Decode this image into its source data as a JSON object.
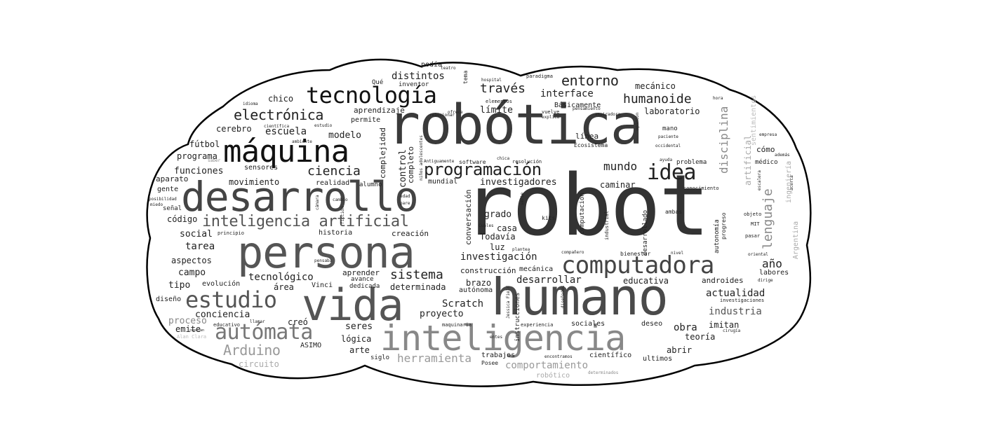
{
  "palette": {
    "background": "#ffffff",
    "cloud_fill": "#ffffff",
    "cloud_stroke": "#000000"
  },
  "word_cloud": {
    "words": [
      {
        "text": "robot",
        "color": "#333333"
      },
      {
        "text": "robótica",
        "color": "#3a3a3a"
      },
      {
        "text": "humano",
        "color": "#4a4a4a"
      },
      {
        "text": "persona",
        "color": "#555555"
      },
      {
        "text": "vida",
        "color": "#555555"
      },
      {
        "text": "desarrollo",
        "color": "#444444"
      },
      {
        "text": "máquina",
        "color": "#111111"
      },
      {
        "text": "inteligencia",
        "color": "#888888"
      },
      {
        "text": "computadora",
        "color": "#444444"
      },
      {
        "text": "tecnología",
        "color": "#111111"
      },
      {
        "text": "estudio",
        "color": "#555555"
      },
      {
        "text": "autómata",
        "color": "#777777"
      },
      {
        "text": "inteligencia artificial",
        "color": "#555555"
      },
      {
        "text": "programación",
        "color": "#222222"
      },
      {
        "text": "idea",
        "color": "#222222"
      },
      {
        "text": "electrónica",
        "color": "#222222"
      },
      {
        "text": "entorno",
        "color": "#222222"
      },
      {
        "text": "humanoide",
        "color": "#222222"
      },
      {
        "text": "través",
        "color": "#222222"
      },
      {
        "text": "Arduino",
        "color": "#999999"
      },
      {
        "text": "ciencia",
        "color": "#222222"
      },
      {
        "text": "lenguaje",
        "color": "#888888"
      },
      {
        "text": "disciplina",
        "color": "#888888"
      },
      {
        "text": "sistema",
        "color": "#222222"
      },
      {
        "text": "herramienta",
        "color": "#999999"
      },
      {
        "text": "comportamiento",
        "color": "#999999"
      },
      {
        "text": "mundo",
        "color": "#222222"
      },
      {
        "text": "interface",
        "color": "#222222"
      },
      {
        "text": "investigación",
        "color": "#222222"
      },
      {
        "text": "Scratch",
        "color": "#222222"
      },
      {
        "text": "desarrollar",
        "color": "#222222"
      },
      {
        "text": "actualidad",
        "color": "#222222"
      },
      {
        "text": "industria",
        "color": "#555555"
      },
      {
        "text": "escuela",
        "color": "#222222"
      },
      {
        "text": "tecnológico",
        "color": "#222222"
      },
      {
        "text": "distintos",
        "color": "#222222"
      },
      {
        "text": "investigadores",
        "color": "#222222"
      },
      {
        "text": "funciones",
        "color": "#222222"
      },
      {
        "text": "movimiento",
        "color": "#222222"
      },
      {
        "text": "proyecto",
        "color": "#222222"
      },
      {
        "text": "educativa",
        "color": "#222222"
      },
      {
        "text": "laboratorio",
        "color": "#222222"
      },
      {
        "text": "mecánico",
        "color": "#222222"
      },
      {
        "text": "modelo",
        "color": "#222222"
      },
      {
        "text": "tarea",
        "color": "#222222"
      },
      {
        "text": "aspectos",
        "color": "#222222"
      },
      {
        "text": "campo",
        "color": "#222222"
      },
      {
        "text": "social",
        "color": "#222222"
      },
      {
        "text": "código",
        "color": "#222222"
      },
      {
        "text": "obra",
        "color": "#222222"
      },
      {
        "text": "año",
        "color": "#222222"
      },
      {
        "text": "artificial",
        "color": "#aaaaaa"
      },
      {
        "text": "ingeniería",
        "color": "#aaaaaa"
      },
      {
        "text": "Argentina",
        "color": "#aaaaaa"
      },
      {
        "text": "conciencia",
        "color": "#222222"
      },
      {
        "text": "chico",
        "color": "#222222"
      },
      {
        "text": "cerebro",
        "color": "#222222"
      },
      {
        "text": "programa",
        "color": "#222222"
      },
      {
        "text": "fútbol",
        "color": "#222222"
      },
      {
        "text": "aparato",
        "color": "#222222"
      },
      {
        "text": "gente",
        "color": "#222222"
      },
      {
        "text": "señal",
        "color": "#222222"
      },
      {
        "text": "tipo",
        "color": "#222222"
      },
      {
        "text": "evolución",
        "color": "#222222"
      },
      {
        "text": "área",
        "color": "#222222"
      },
      {
        "text": "diseño",
        "color": "#222222"
      },
      {
        "text": "proceso",
        "color": "#888888"
      },
      {
        "text": "emite",
        "color": "#222222"
      },
      {
        "text": "creó",
        "color": "#222222"
      },
      {
        "text": "circuito",
        "color": "#aaaaaa"
      },
      {
        "text": "ASIMO",
        "color": "#222222"
      },
      {
        "text": "lógica",
        "color": "#222222"
      },
      {
        "text": "arte",
        "color": "#222222"
      },
      {
        "text": "seres",
        "color": "#222222"
      },
      {
        "text": "grado",
        "color": "#222222"
      },
      {
        "text": "casa",
        "color": "#222222"
      },
      {
        "text": "Todavía",
        "color": "#222222"
      },
      {
        "text": "luz",
        "color": "#222222"
      },
      {
        "text": "brazo",
        "color": "#222222"
      },
      {
        "text": "determinada",
        "color": "#222222"
      },
      {
        "text": "conversación",
        "color": "#222222"
      },
      {
        "text": "control",
        "color": "#222222"
      },
      {
        "text": "complejidad",
        "color": "#222222"
      },
      {
        "text": "completo",
        "color": "#222222"
      },
      {
        "text": "caminar",
        "color": "#222222"
      },
      {
        "text": "límite",
        "color": "#222222"
      },
      {
        "text": "aprendizaje",
        "color": "#222222"
      },
      {
        "text": "permite",
        "color": "#222222"
      },
      {
        "text": "realidad",
        "color": "#222222"
      },
      {
        "text": "alumno",
        "color": "#222222"
      },
      {
        "text": "sensores",
        "color": "#222222"
      },
      {
        "text": "mundial",
        "color": "#222222"
      },
      {
        "text": "historia",
        "color": "#222222"
      },
      {
        "text": "creación",
        "color": "#222222"
      },
      {
        "text": "aprender",
        "color": "#222222"
      },
      {
        "text": "avance",
        "color": "#222222"
      },
      {
        "text": "Vinci",
        "color": "#222222"
      },
      {
        "text": "dedicada",
        "color": "#222222"
      },
      {
        "text": "construcción",
        "color": "#222222"
      },
      {
        "text": "mecánica",
        "color": "#222222"
      },
      {
        "text": "autónoma",
        "color": "#222222"
      },
      {
        "text": "instrucciones",
        "color": "#222222"
      },
      {
        "text": "sociales",
        "color": "#222222"
      },
      {
        "text": "deseo",
        "color": "#222222"
      },
      {
        "text": "imitan",
        "color": "#222222"
      },
      {
        "text": "teoría",
        "color": "#222222"
      },
      {
        "text": "abrir",
        "color": "#222222"
      },
      {
        "text": "científico",
        "color": "#222222"
      },
      {
        "text": "ultimos",
        "color": "#222222"
      },
      {
        "text": "trabajos",
        "color": "#222222"
      },
      {
        "text": "siglo",
        "color": "#222222"
      },
      {
        "text": "robótico",
        "color": "#aaaaaa"
      },
      {
        "text": "Posee",
        "color": "#222222"
      },
      {
        "text": "androides",
        "color": "#222222"
      },
      {
        "text": "labores",
        "color": "#222222"
      },
      {
        "text": "cómo",
        "color": "#222222"
      },
      {
        "text": "médico",
        "color": "#222222"
      },
      {
        "text": "problema",
        "color": "#222222"
      },
      {
        "text": "línea",
        "color": "#222222"
      },
      {
        "text": "mano",
        "color": "#222222"
      },
      {
        "text": "Ecosistema",
        "color": "#222222"
      },
      {
        "text": "kits",
        "color": "#222222"
      },
      {
        "text": "ambas",
        "color": "#222222"
      },
      {
        "text": "computación",
        "color": "#222222"
      },
      {
        "text": "industrial",
        "color": "#222222"
      },
      {
        "text": "desarrollado",
        "color": "#222222"
      },
      {
        "text": "autonomía",
        "color": "#222222"
      },
      {
        "text": "progreso",
        "color": "#222222"
      },
      {
        "text": "bienestar",
        "color": "#222222"
      },
      {
        "text": "nivel",
        "color": "#222222"
      },
      {
        "text": "conocimiento",
        "color": "#222222"
      },
      {
        "text": "objeto",
        "color": "#222222"
      },
      {
        "text": "MIT",
        "color": "#222222"
      },
      {
        "text": "pasar",
        "color": "#222222"
      },
      {
        "text": "oriental",
        "color": "#222222"
      },
      {
        "text": "dirige",
        "color": "#222222"
      },
      {
        "text": "investigaciones",
        "color": "#222222"
      },
      {
        "text": "cirugía",
        "color": "#222222"
      },
      {
        "text": "sentimientos",
        "color": "#bbbbbb"
      },
      {
        "text": "empresa",
        "color": "#222222"
      },
      {
        "text": "además",
        "color": "#222222"
      },
      {
        "text": "escalera",
        "color": "#222222"
      },
      {
        "text": "acerca",
        "color": "#222222"
      },
      {
        "text": "hora",
        "color": "#222222"
      },
      {
        "text": "paciente",
        "color": "#222222"
      },
      {
        "text": "occidental",
        "color": "#222222"
      },
      {
        "text": "ayuda",
        "color": "#222222"
      },
      {
        "text": "opinión",
        "color": "#222222"
      },
      {
        "text": "aspiradora",
        "color": "#222222"
      },
      {
        "text": "pensamiento",
        "color": "#222222"
      },
      {
        "text": "Básicamente",
        "color": "#222222"
      },
      {
        "text": "vuelve",
        "color": "#222222"
      },
      {
        "text": "explica",
        "color": "#222222"
      },
      {
        "text": "paradigma",
        "color": "#222222"
      },
      {
        "text": "elementos",
        "color": "#222222"
      },
      {
        "text": "ofrece",
        "color": "#222222"
      },
      {
        "text": "reaccionar",
        "color": "#222222"
      },
      {
        "text": "hospital",
        "color": "#222222"
      },
      {
        "text": "podía",
        "color": "#222222"
      },
      {
        "text": "teatro",
        "color": "#222222"
      },
      {
        "text": "tema",
        "color": "#222222"
      },
      {
        "text": "Qué",
        "color": "#222222"
      },
      {
        "text": "inventor",
        "color": "#222222"
      },
      {
        "text": "estudio",
        "color": "#222222"
      },
      {
        "text": "científica",
        "color": "#222222"
      },
      {
        "text": "ambiente",
        "color": "#222222"
      },
      {
        "text": "idioma",
        "color": "#222222"
      },
      {
        "text": "niños adolescentes",
        "color": "#222222"
      },
      {
        "text": "Antiguamente",
        "color": "#222222"
      },
      {
        "text": "software",
        "color": "#222222"
      },
      {
        "text": "resolución",
        "color": "#222222"
      },
      {
        "text": "chica",
        "color": "#222222"
      },
      {
        "text": "edad",
        "color": "#222222"
      },
      {
        "text": "pare",
        "color": "#222222"
      },
      {
        "text": "cambio",
        "color": "#222222"
      },
      {
        "text": "cámara",
        "color": "#222222"
      },
      {
        "text": "ficción",
        "color": "#222222"
      },
      {
        "text": "serie",
        "color": "#222222"
      },
      {
        "text": "Cuáles",
        "color": "#222222"
      },
      {
        "text": "planteа",
        "color": "#222222"
      },
      {
        "text": "compañero",
        "color": "#222222"
      },
      {
        "text": "experiencia",
        "color": "#222222"
      },
      {
        "text": "maquinaria",
        "color": "#222222"
      },
      {
        "text": "entes",
        "color": "#222222"
      },
      {
        "text": "encontramos",
        "color": "#222222"
      },
      {
        "text": "determinados",
        "color": "#888888"
      },
      {
        "text": "diseñados",
        "color": "#222222"
      },
      {
        "text": "Jessica Field",
        "color": "#222222"
      },
      {
        "text": "educativo",
        "color": "#222222"
      },
      {
        "text": "llamar",
        "color": "#222222"
      },
      {
        "text": "pensaba",
        "color": "#222222"
      },
      {
        "text": "Alan Clara",
        "color": "#bbbbbb"
      },
      {
        "text": "cuentan",
        "color": "#222222"
      },
      {
        "text": "posibilidad",
        "color": "#222222"
      },
      {
        "text": "miedo",
        "color": "#222222"
      },
      {
        "text": "principio",
        "color": "#222222"
      },
      {
        "text": "saber",
        "color": "#888888"
      }
    ]
  }
}
